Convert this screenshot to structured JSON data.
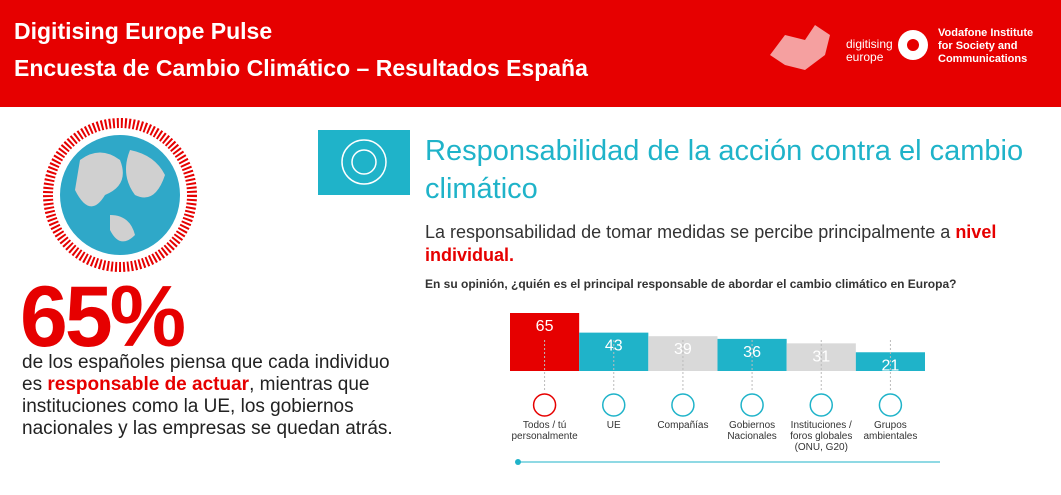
{
  "header": {
    "title_lines": [
      "Digitising Europe Pulse",
      "Encuesta de Cambio Climático – Resultados España"
    ],
    "logo_left": [
      "digitising",
      "europe"
    ],
    "logo_right": [
      "Vodafone Institute",
      "for Society and",
      "Communications"
    ]
  },
  "stat": {
    "figure": "65%",
    "text": [
      "de los españoles piensa que cada individuo es ",
      "responsable de actuar",
      ", mientras que instituciones como la UE, los gobiernos nacionales y las empresas se quedan atrás."
    ]
  },
  "section": {
    "title": "Responsabilidad de la acción contra el cambio climático",
    "subtitle": [
      "La responsabilidad de tomar medidas se percibe principalmente a ",
      "nivel individual."
    ],
    "question": "En su opinión, ¿quién es el principal responsable de abordar el cambio climático en Europa?"
  },
  "chart_data": {
    "type": "bar",
    "categories": [
      "Todos / tú\npersonalmente",
      "UE",
      "Compañías",
      "Gobiernos\nNacionales",
      "Instituciones /\nforos globales\n(ONU, G20)",
      "Grupos\nambientales"
    ],
    "values": [
      65,
      43,
      39,
      36,
      31,
      21
    ],
    "colors": [
      "#e60000",
      "#1fb3c9",
      "#d9d9d9",
      "#1fb3c9",
      "#d9d9d9",
      "#1fb3c9"
    ]
  }
}
